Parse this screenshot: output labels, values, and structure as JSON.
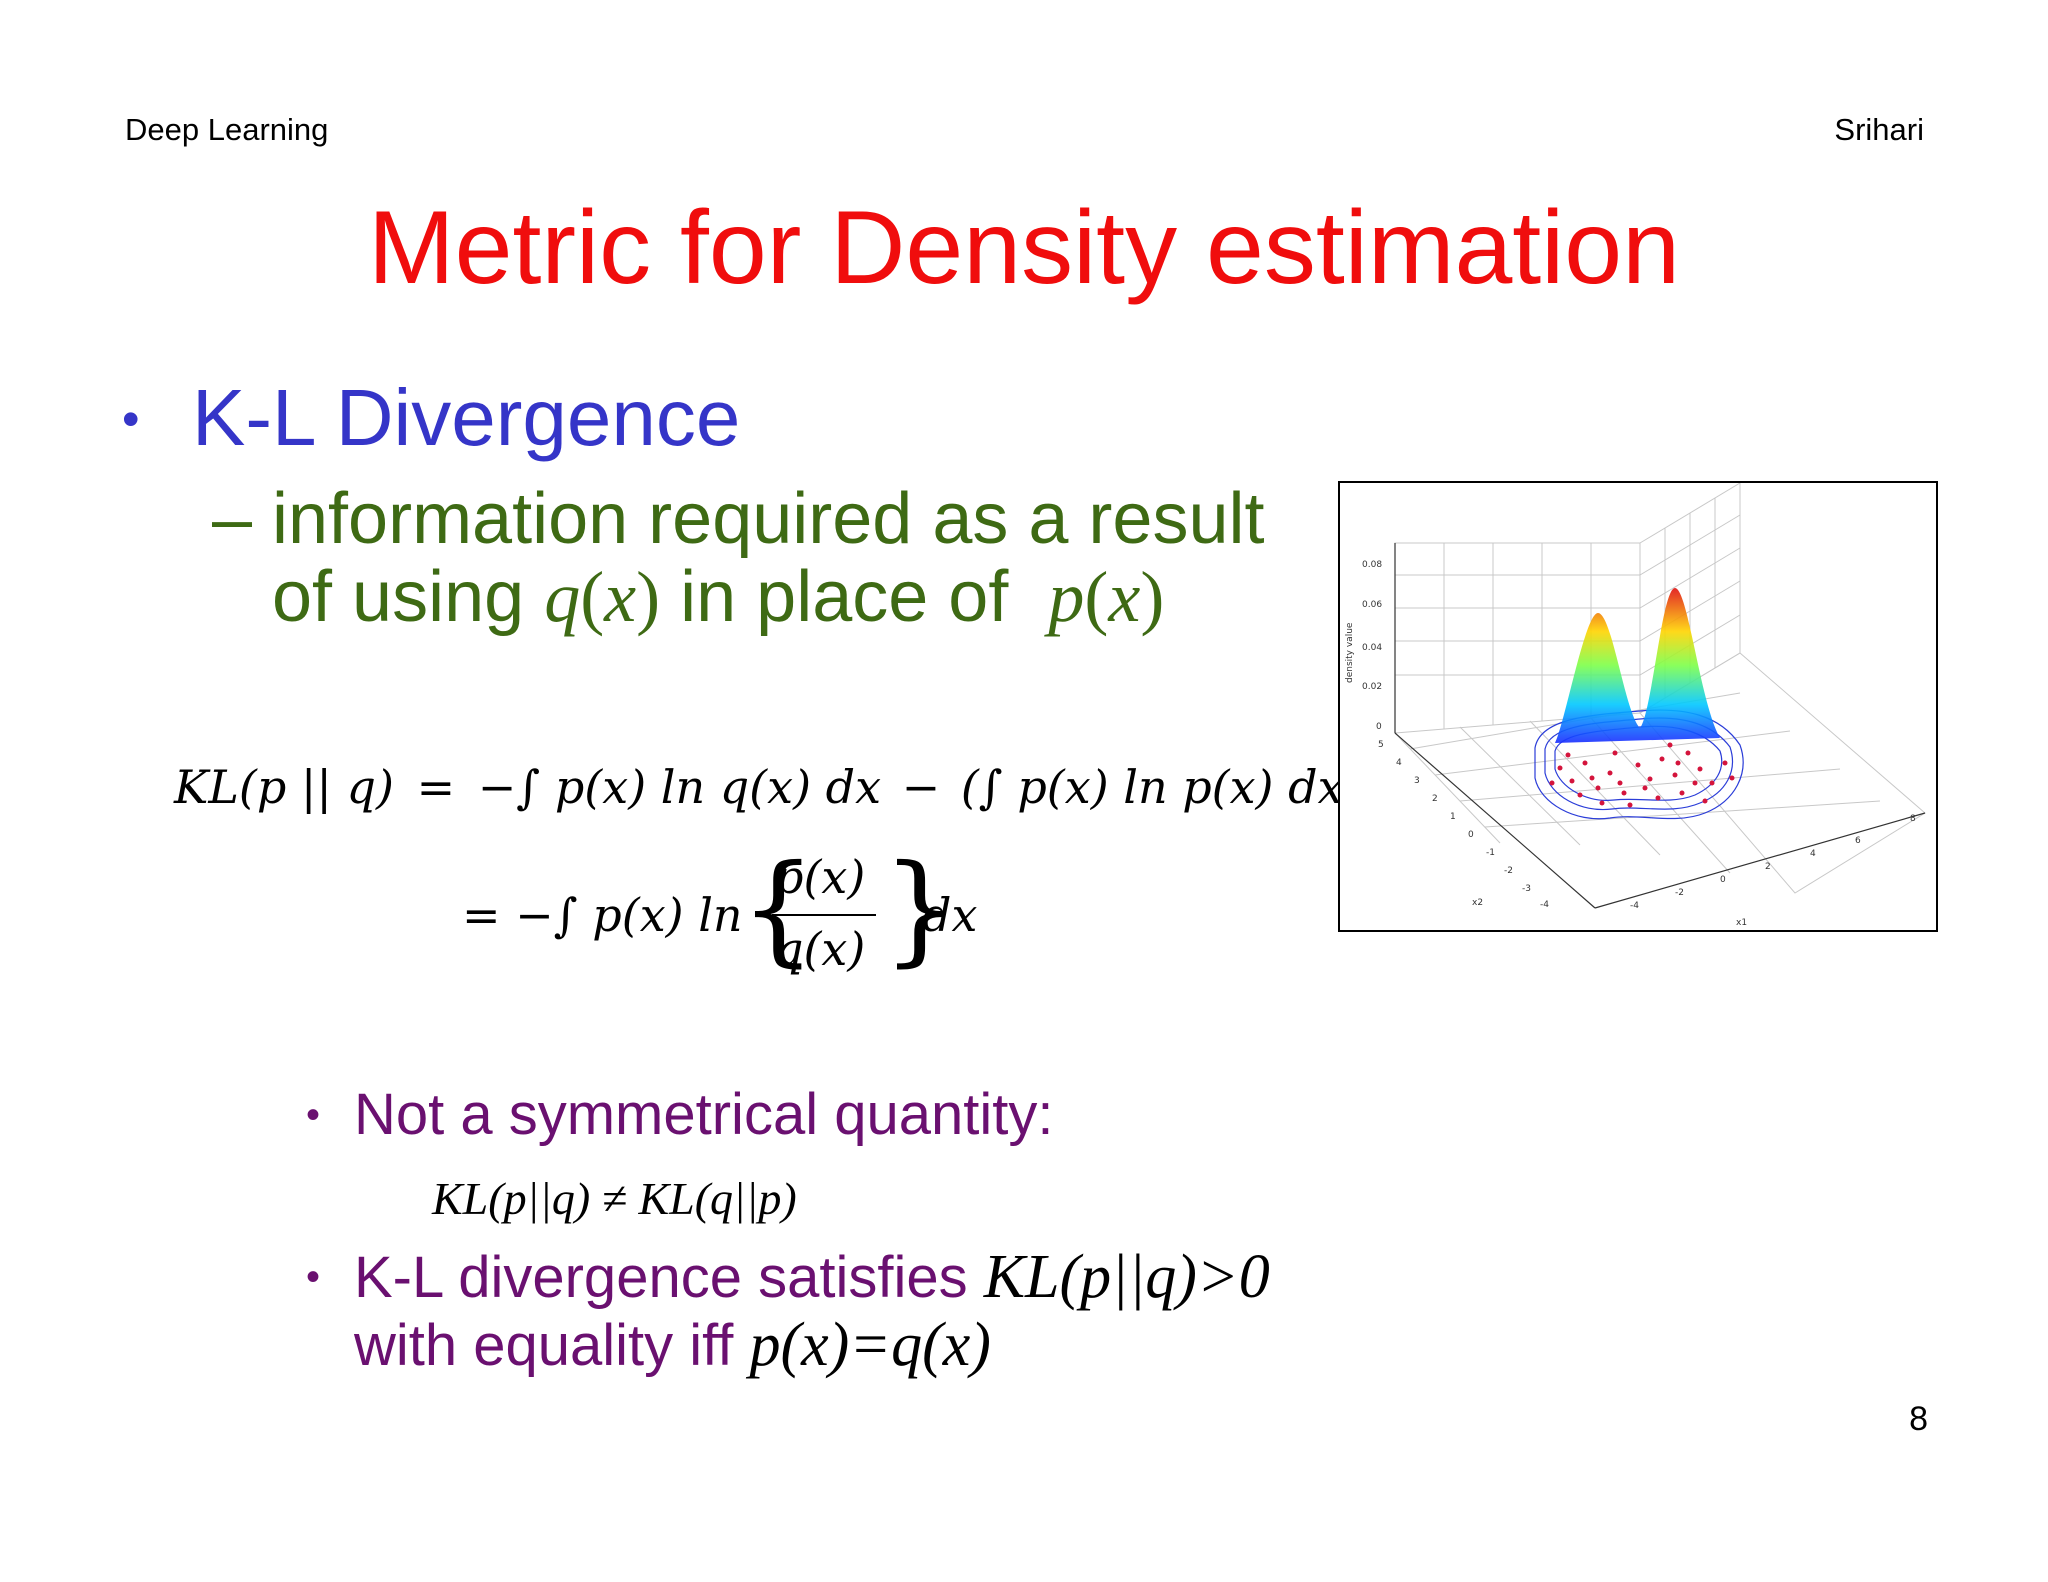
{
  "header": {
    "left": "Deep Learning",
    "right": "Srihari"
  },
  "title": "Metric for Density estimation",
  "colors": {
    "title": "#f00d0d",
    "bullet1": "#3535c8",
    "sub": "#3e6a14",
    "bullet2": "#6a1070"
  },
  "bullet1": {
    "marker": "•",
    "text": "K-L Divergence"
  },
  "sub": {
    "dash": "–",
    "line1": "information required as a result",
    "line2_a": "of using ",
    "line2_q": "q",
    "line2_qx": "(x)",
    "line2_b": " in place of ",
    "line2_p": "p",
    "line2_px": "(x)"
  },
  "equation": {
    "lhs": "KL(p || q)",
    "eq": "=",
    "part1": "−∫ p(x) ln q(x) dx",
    "minus": "−",
    "part2": "(∫ p(x) ln p(x) dx)",
    "line2_prefix": "= −∫ p(x) ln",
    "numerator": "p(x)",
    "denominator": "q(x)",
    "dx": "dx"
  },
  "bullets2": [
    {
      "marker": "•",
      "text": "Not a symmetrical quantity:"
    },
    {
      "marker": "•",
      "text_a": "K-L divergence satisfies ",
      "math": "KL(p||q)>0",
      "text_b": "with equality iff ",
      "math2": "p(x)=q(x)"
    }
  ],
  "inequality": "KL(p||q) ≠ KL(q||p)",
  "figure": {
    "ylabel": "density value",
    "zticks": [
      "0.08",
      "0.06",
      "0.04",
      "0.02",
      "0"
    ],
    "x2ticks": [
      "5",
      "4",
      "3",
      "2",
      "1",
      "0",
      "-1",
      "-2",
      "-3",
      "-4"
    ],
    "x1ticks": [
      "-4",
      "-2",
      "0",
      "2",
      "4",
      "6",
      "8"
    ],
    "x2label": "x2",
    "x1label": "x1"
  },
  "page_number": "8"
}
